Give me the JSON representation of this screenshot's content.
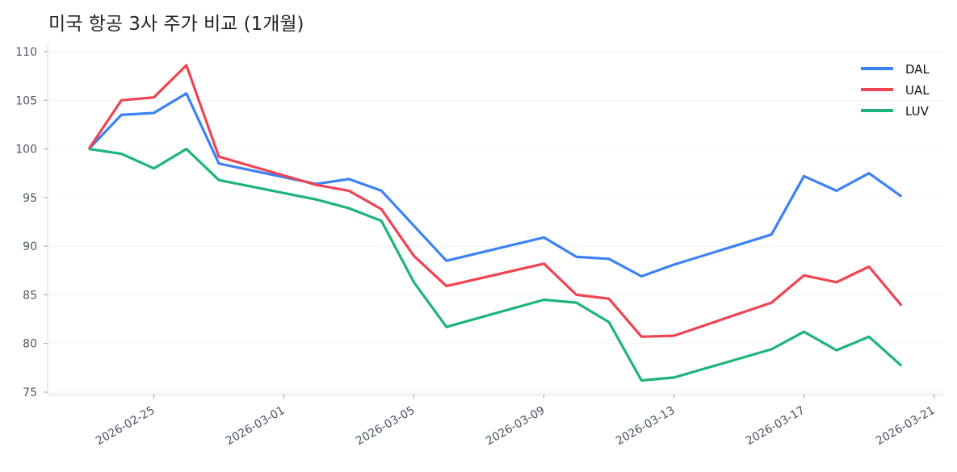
{
  "chart_data": {
    "type": "line",
    "title": "미국 항공 3사 주가 비교 (1개월)",
    "xlabel": "",
    "ylabel": "",
    "ylim": [
      74.7,
      110.7
    ],
    "xlim": [
      "2026-02-21",
      "2026-03-21"
    ],
    "grid": "horizontal",
    "legend": "top-right",
    "yticks": [
      75,
      80,
      85,
      90,
      95,
      100,
      105,
      110
    ],
    "xticks": [
      "2026-02-25",
      "2026-03-01",
      "2026-03-05",
      "2026-03-09",
      "2026-03-13",
      "2026-03-17",
      "2026-03-21"
    ],
    "x": [
      "2026-02-23",
      "2026-02-24",
      "2026-02-25",
      "2026-02-26",
      "2026-02-27",
      "2026-03-02",
      "2026-03-03",
      "2026-03-04",
      "2026-03-05",
      "2026-03-06",
      "2026-03-09",
      "2026-03-10",
      "2026-03-11",
      "2026-03-12",
      "2026-03-13",
      "2026-03-16",
      "2026-03-17",
      "2026-03-18",
      "2026-03-19",
      "2026-03-20"
    ],
    "series": [
      {
        "name": "DAL",
        "color": "#3b82f6",
        "values": [
          100,
          103.5,
          103.7,
          105.7,
          98.5,
          96.4,
          96.9,
          95.7,
          92.1,
          88.5,
          90.9,
          88.9,
          88.7,
          86.9,
          88.1,
          91.2,
          97.2,
          95.7,
          97.5,
          95.1
        ]
      },
      {
        "name": "UAL",
        "color": "#ef4452",
        "values": [
          100,
          105.0,
          105.3,
          108.6,
          99.2,
          96.3,
          95.7,
          93.8,
          89.0,
          85.9,
          88.2,
          85.0,
          84.6,
          80.7,
          80.8,
          84.2,
          87.0,
          86.3,
          87.9,
          83.9
        ]
      },
      {
        "name": "LUV",
        "color": "#1db47a",
        "values": [
          100,
          99.5,
          98.0,
          100.0,
          96.8,
          94.8,
          93.9,
          92.6,
          86.3,
          81.7,
          84.5,
          84.2,
          82.2,
          76.2,
          76.5,
          79.4,
          81.2,
          79.3,
          80.7,
          77.7
        ]
      }
    ]
  }
}
